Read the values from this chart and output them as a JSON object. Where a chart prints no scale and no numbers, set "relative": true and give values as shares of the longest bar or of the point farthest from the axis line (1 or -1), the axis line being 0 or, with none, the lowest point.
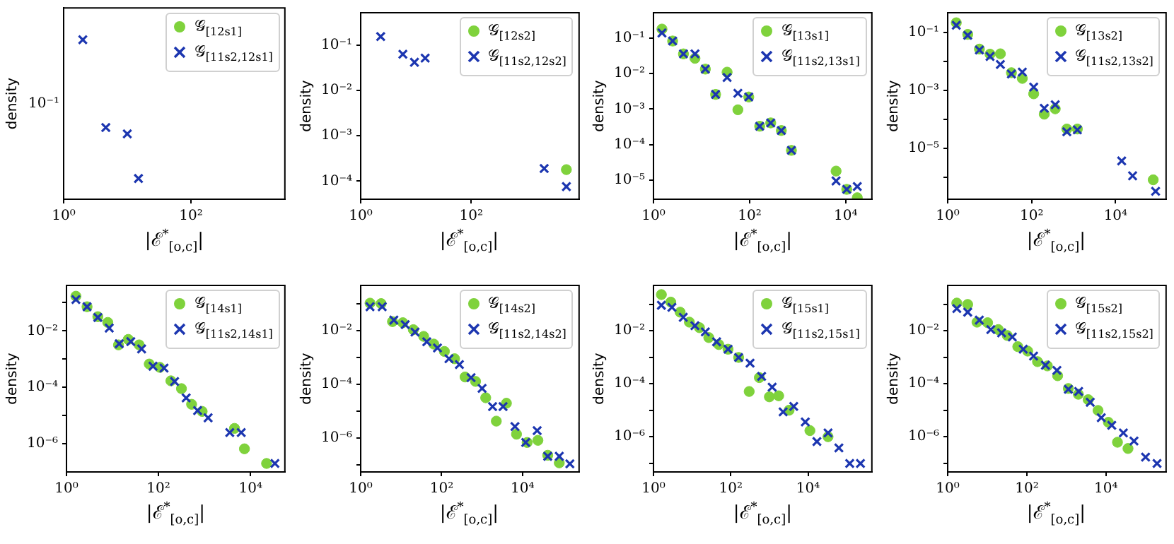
{
  "chart_data": [
    {
      "type": "scatter",
      "xlabel": "|ℰ$^{*}$$_{[o,c]}$|",
      "ylabel": "density",
      "log": "x",
      "relative": true,
      "annotations": [
        "10⁻¹"
      ],
      "legend": "top right",
      "grid": false,
      "xlim": [
        1,
        3000
      ],
      "xticks": [
        {
          "value": 1,
          "label": "10⁰"
        },
        {
          "value": 100,
          "label": "10²"
        }
      ],
      "series": [
        {
          "name": "𝒢$_{[12s1]}$",
          "color": "#7fd23c",
          "marker": "circle"
        },
        {
          "name": "𝒢$_{[11s2,12s1]}$",
          "color": "#1c36b0",
          "marker": "cross",
          "x": [
            2,
            4.6,
            10,
            15
          ],
          "values": [
            1,
            0.45,
            0.41,
            0.13
          ]
        }
      ]
    },
    {
      "type": "scatter",
      "xlabel": "|ℰ$^{*}$$_{[o,c]}$|",
      "ylabel": "density",
      "log": "xy",
      "legend": "top right",
      "grid": false,
      "xlim": [
        1,
        9000
      ],
      "xticks": [
        {
          "value": 1,
          "label": "10⁰"
        },
        {
          "value": 100,
          "label": "10²"
        }
      ],
      "ylim": [
        4e-05,
        0.52
      ],
      "yticks": [
        {
          "value": 0.1,
          "label": "10⁻¹"
        },
        {
          "value": 0.01,
          "label": "10⁻²"
        },
        {
          "value": 0.001,
          "label": "10⁻³"
        },
        {
          "value": 0.0001,
          "label": "10⁻⁴"
        }
      ],
      "series": [
        {
          "name": "𝒢$_{[12s2]}$",
          "color": "#7fd23c",
          "marker": "circle",
          "x": [
            5300
          ],
          "values": [
            0.00018
          ]
        },
        {
          "name": "𝒢$_{[11s2,12s2]}$",
          "color": "#1c36b0",
          "marker": "cross",
          "x": [
            2.3,
            5.8,
            9.4,
            14.7,
            2100,
            5300
          ],
          "values": [
            0.155,
            0.063,
            0.042,
            0.052,
            0.00019,
            7.6e-05
          ]
        }
      ]
    },
    {
      "type": "scatter",
      "xlabel": "|ℰ$^{*}$$_{[o,c]}$|",
      "ylabel": "density",
      "log": "xy",
      "legend": "top right",
      "grid": false,
      "xlim": [
        1,
        35000
      ],
      "xticks": [
        {
          "value": 1,
          "label": "10⁰"
        },
        {
          "value": 100,
          "label": "10²"
        },
        {
          "value": 10000,
          "label": "10⁴"
        }
      ],
      "ylim": [
        2.9e-06,
        0.52
      ],
      "yticks": [
        {
          "value": 0.1,
          "label": "10⁻¹"
        },
        {
          "value": 0.01,
          "label": "10⁻²"
        },
        {
          "value": 0.001,
          "label": "10⁻³"
        },
        {
          "value": 0.0001,
          "label": "10⁻⁴"
        },
        {
          "value": 1e-05,
          "label": "10⁻⁵"
        }
      ],
      "series": [
        {
          "name": "𝒢$_{[13s1]}$",
          "color": "#7fd23c",
          "marker": "circle",
          "x": [
            1.5,
            2.5,
            4.2,
            7.3,
            12,
            19.6,
            34,
            57,
            96,
            162,
            275,
            457,
            741,
            6300,
            10500,
            17400
          ],
          "values": [
            0.18,
            0.083,
            0.036,
            0.027,
            0.0134,
            0.0026,
            0.011,
            0.00096,
            0.0022,
            0.00033,
            0.00041,
            0.00025,
            6.9e-05,
            1.8e-05,
            5.5e-06,
            3.2e-06
          ]
        },
        {
          "name": "𝒢$_{[11s2,13s1]}$",
          "color": "#1c36b0",
          "marker": "cross",
          "x": [
            1.5,
            2.5,
            4.2,
            7.3,
            12,
            19.6,
            34,
            57,
            96,
            162,
            275,
            457,
            741,
            6300,
            10500,
            17400
          ],
          "values": [
            0.14,
            0.083,
            0.036,
            0.036,
            0.0134,
            0.0026,
            0.0078,
            0.0028,
            0.0022,
            0.00033,
            0.00041,
            0.00025,
            6.9e-05,
            9.5e-06,
            5.5e-06,
            6.6e-06
          ]
        }
      ]
    },
    {
      "type": "scatter",
      "xlabel": "|ℰ$^{*}$$_{[o,c]}$|",
      "ylabel": "density",
      "log": "xy",
      "legend": "top right",
      "grid": false,
      "xlim": [
        1,
        160000
      ],
      "xticks": [
        {
          "value": 1,
          "label": "10⁰"
        },
        {
          "value": 100,
          "label": "10²"
        },
        {
          "value": 10000,
          "label": "10⁴"
        }
      ],
      "ylim": [
        1.7e-07,
        0.49
      ],
      "yticks": [
        {
          "value": 0.1,
          "label": "10⁻¹"
        },
        {
          "value": 0.01,
          "label": null
        },
        {
          "value": 0.001,
          "label": "10⁻³"
        },
        {
          "value": 0.0001,
          "label": null
        },
        {
          "value": 1e-05,
          "label": "10⁻⁵"
        },
        {
          "value": 1e-06,
          "label": null
        }
      ],
      "series": [
        {
          "name": "𝒢$_{[13s2]}$",
          "color": "#7fd23c",
          "marker": "circle",
          "x": [
            1.6,
            3,
            5.7,
            10.2,
            18,
            33,
            60,
            112,
            200,
            365,
            690,
            1230,
            79000
          ],
          "values": [
            0.22,
            0.087,
            0.027,
            0.018,
            0.0185,
            0.0041,
            0.0026,
            0.00076,
            0.00015,
            0.00023,
            4.6e-05,
            4.6e-05,
            8e-07
          ]
        },
        {
          "name": "𝒢$_{[11s2,13s2]}$",
          "color": "#1c36b0",
          "marker": "cross",
          "x": [
            1.6,
            3,
            5.7,
            10.2,
            18,
            33,
            60,
            112,
            200,
            365,
            690,
            1230,
            14000,
            25500,
            90000
          ],
          "values": [
            0.18,
            0.081,
            0.025,
            0.015,
            0.0079,
            0.0037,
            0.0043,
            0.0013,
            0.00024,
            0.00032,
            3.7e-05,
            4.3e-05,
            3.6e-06,
            1.1e-06,
            3.2e-07
          ]
        }
      ]
    },
    {
      "type": "scatter",
      "xlabel": "|ℰ$^{*}$$_{[o,c]}$|",
      "ylabel": "density",
      "log": "xy",
      "legend": "top right",
      "grid": false,
      "xlim": [
        1,
        56000
      ],
      "xticks": [
        {
          "value": 1,
          "label": "10⁰"
        },
        {
          "value": 100,
          "label": "10²"
        },
        {
          "value": 10000,
          "label": "10⁴"
        }
      ],
      "ylim": [
        1e-07,
        0.41
      ],
      "yticks": [
        {
          "value": 0.1,
          "label": null
        },
        {
          "value": 0.01,
          "label": "10⁻²"
        },
        {
          "value": 0.001,
          "label": null
        },
        {
          "value": 0.0001,
          "label": "10⁻⁴"
        },
        {
          "value": 1e-05,
          "label": null
        },
        {
          "value": 1e-06,
          "label": "10⁻⁶"
        }
      ],
      "series": [
        {
          "name": "𝒢$_{[14s1]}$",
          "color": "#7fd23c",
          "marker": "circle",
          "x": [
            1.6,
            2.8,
            4.8,
            7.9,
            13.5,
            22,
            38,
            63,
            107,
            186,
            316,
            525,
            890,
            4500,
            7400,
            22400
          ],
          "values": [
            0.17,
            0.072,
            0.032,
            0.02,
            0.0032,
            0.005,
            0.0032,
            0.00067,
            0.00051,
            0.00017,
            9e-05,
            2.5e-05,
            1.4e-05,
            3.5e-06,
            6.6e-07,
            2e-07
          ]
        },
        {
          "name": "𝒢$_{[11s2,14s1]}$",
          "color": "#1c36b0",
          "marker": "cross",
          "x": [
            1.6,
            2.8,
            4.8,
            8.5,
            14,
            25,
            43,
            76,
            132,
            224,
            400,
            710,
            1200,
            3550,
            6300,
            34000
          ],
          "values": [
            0.13,
            0.072,
            0.03,
            0.0126,
            0.0035,
            0.0042,
            0.0023,
            0.00056,
            0.00048,
            0.00016,
            4.2e-05,
            1.5e-05,
            8.3e-06,
            2.5e-06,
            2.5e-06,
            2e-07
          ]
        }
      ]
    },
    {
      "type": "scatter",
      "xlabel": "|ℰ$^{*}$$_{[o,c]}$|",
      "ylabel": "density",
      "log": "xy",
      "legend": "top right",
      "grid": false,
      "xlim": [
        1,
        250000
      ],
      "xticks": [
        {
          "value": 1,
          "label": "10⁰"
        },
        {
          "value": 100,
          "label": "10²"
        },
        {
          "value": 10000,
          "label": "10⁴"
        }
      ],
      "ylim": [
        5.5e-08,
        0.49
      ],
      "yticks": [
        {
          "value": 0.1,
          "label": null
        },
        {
          "value": 0.01,
          "label": "10⁻²"
        },
        {
          "value": 0.001,
          "label": null
        },
        {
          "value": 0.0001,
          "label": "10⁻⁴"
        },
        {
          "value": 1e-05,
          "label": null
        },
        {
          "value": 1e-06,
          "label": "10⁻⁶"
        },
        {
          "value": 1e-07,
          "label": null
        }
      ],
      "series": [
        {
          "name": "𝒢$_{[14s2]}$",
          "color": "#7fd23c",
          "marker": "circle",
          "x": [
            1.7,
            3.2,
            6.1,
            11,
            20,
            36,
            64,
            117,
            209,
            380,
            690,
            1230,
            2250,
            4000,
            7100,
            13000,
            24000,
            42000,
            81000
          ],
          "values": [
            0.107,
            0.103,
            0.022,
            0.02,
            0.011,
            0.0062,
            0.0032,
            0.0017,
            0.00091,
            0.00019,
            0.00013,
            3.2e-05,
            4.3e-06,
            2e-05,
            1.4e-06,
            6.9e-07,
            8.3e-07,
            2.3e-07,
            1.2e-07
          ]
        },
        {
          "name": "𝒢$_{[11s2,14s2]}$",
          "color": "#1c36b0",
          "marker": "cross",
          "x": [
            1.7,
            3.4,
            6.6,
            12.6,
            22,
            43,
            79,
            152,
            275,
            535,
            1000,
            1820,
            3300,
            6500,
            12000,
            23000,
            42000,
            81000,
            148000
          ],
          "values": [
            0.079,
            0.079,
            0.025,
            0.017,
            0.009,
            0.0039,
            0.0023,
            0.00091,
            0.00055,
            0.00018,
            7.1e-05,
            1.5e-05,
            1.5e-05,
            2.7e-06,
            6.9e-07,
            1.9e-06,
            2.1e-07,
            2.1e-07,
            1.1e-07
          ]
        }
      ]
    },
    {
      "type": "scatter",
      "xlabel": "|ℰ$^{*}$$_{[o,c]}$|",
      "ylabel": "density",
      "log": "xy",
      "legend": "top right",
      "grid": false,
      "xlim": [
        1,
        450000
      ],
      "xticks": [
        {
          "value": 1,
          "label": "10⁰"
        },
        {
          "value": 100,
          "label": "10²"
        },
        {
          "value": 10000,
          "label": "10⁴"
        }
      ],
      "ylim": [
        4.7e-08,
        0.51
      ],
      "yticks": [
        {
          "value": 0.1,
          "label": null
        },
        {
          "value": 0.01,
          "label": "10⁻²"
        },
        {
          "value": 0.001,
          "label": null
        },
        {
          "value": 0.0001,
          "label": "10⁻⁴"
        },
        {
          "value": 1e-05,
          "label": null
        },
        {
          "value": 1e-06,
          "label": "10⁻⁶"
        },
        {
          "value": 1e-07,
          "label": null
        }
      ],
      "series": [
        {
          "name": "𝒢$_{[15s1]}$",
          "color": "#7fd23c",
          "marker": "circle",
          "x": [
            1.6,
            2.8,
            4.9,
            8.5,
            15.5,
            27,
            49,
            85,
            160,
            300,
            550,
            1000,
            1740,
            3240,
            11200,
            33000
          ],
          "values": [
            0.23,
            0.12,
            0.05,
            0.021,
            0.013,
            0.0055,
            0.003,
            0.002,
            0.00098,
            5.1e-05,
            0.00017,
            3.2e-05,
            3.5e-05,
            1e-05,
            1.7e-06,
            1e-06
          ]
        },
        {
          "name": "𝒢$_{[11s2,15s1]}$",
          "color": "#1c36b0",
          "marker": "cross",
          "x": [
            1.6,
            3,
            5.9,
            11.8,
            22,
            43,
            85,
            160,
            316,
            630,
            1180,
            2270,
            4270,
            8500,
            17000,
            33000,
            63000,
            120000,
            228000
          ],
          "values": [
            0.091,
            0.076,
            0.032,
            0.0155,
            0.009,
            0.0038,
            0.002,
            0.00098,
            0.0006,
            0.00019,
            7.4e-05,
            8.7e-06,
            1.4e-05,
            3.6e-06,
            6.6e-07,
            1.4e-06,
            3.8e-07,
            9.8e-08,
            9.8e-08
          ]
        }
      ]
    },
    {
      "type": "scatter",
      "xlabel": "|ℰ$^{*}$$_{[o,c]}$|",
      "ylabel": "density",
      "log": "xy",
      "legend": "top right",
      "grid": false,
      "xlim": [
        1,
        330000
      ],
      "xticks": [
        {
          "value": 1,
          "label": "10⁰"
        },
        {
          "value": 100,
          "label": "10²"
        },
        {
          "value": 10000,
          "label": "10⁴"
        }
      ],
      "ylim": [
        4.7e-08,
        0.51
      ],
      "yticks": [
        {
          "value": 0.1,
          "label": null
        },
        {
          "value": 0.01,
          "label": "10⁻²"
        },
        {
          "value": 0.001,
          "label": null
        },
        {
          "value": 0.0001,
          "label": "10⁻⁴"
        },
        {
          "value": 1e-05,
          "label": null
        },
        {
          "value": 1e-06,
          "label": "10⁻⁶"
        },
        {
          "value": 1e-07,
          "label": null
        }
      ],
      "series": [
        {
          "name": "𝒢$_{[15s2]}$",
          "color": "#7fd23c",
          "marker": "circle",
          "x": [
            1.7,
            3.2,
            5.5,
            10.2,
            19,
            32,
            59,
            105,
            186,
            330,
            600,
            1120,
            2000,
            3550,
            6300,
            11500,
            19500,
            36000
          ],
          "values": [
            0.11,
            0.098,
            0.021,
            0.02,
            0.011,
            0.0066,
            0.0025,
            0.0017,
            0.00068,
            0.00047,
            0.0002,
            6.6e-05,
            4e-05,
            2.5e-05,
            9.8e-06,
            3.5e-06,
            6.2e-07,
            3.6e-07
          ]
        },
        {
          "name": "𝒢$_{[11s2,15s2]}$",
          "color": "#1c36b0",
          "marker": "cross",
          "x": [
            1.7,
            3.2,
            6.3,
            12.3,
            23,
            43,
            81,
            148,
            295,
            575,
            1120,
            2040,
            4000,
            7600,
            14000,
            27500,
            51000,
            100000,
            195000
          ],
          "values": [
            0.068,
            0.05,
            0.025,
            0.011,
            0.0083,
            0.0058,
            0.002,
            0.0011,
            0.0005,
            0.00032,
            6.2e-05,
            5.1e-05,
            2e-05,
            5.2e-06,
            2.7e-06,
            1.4e-06,
            6.9e-07,
            1.7e-07,
            9.8e-08
          ]
        }
      ]
    }
  ]
}
